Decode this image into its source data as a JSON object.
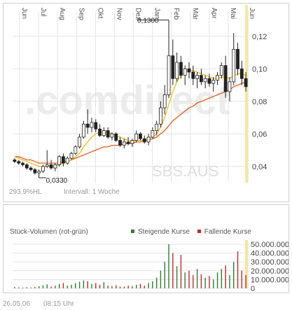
{
  "chart_data": [
    {
      "type": "candlestick",
      "months": [
        "Jun",
        "Jul",
        "Aug",
        "Sep",
        "Okt",
        "Nov",
        "Dez",
        "Jan",
        "Feb",
        "Mär",
        "Apr",
        "Mai",
        "Jun"
      ],
      "y_ticks": [
        "0,12",
        "0,10",
        "0,08",
        "0,06",
        "0,04"
      ],
      "ylim": [
        0.03,
        0.135
      ],
      "annotations": {
        "high": "0,1300",
        "low": "0,0330"
      },
      "watermark": ".comdirect",
      "symbol": "SBS.AUS",
      "series": {
        "ohlc": [
          [
            0.044,
            0.045,
            0.042,
            0.043
          ],
          [
            0.043,
            0.044,
            0.041,
            0.042
          ],
          [
            0.042,
            0.043,
            0.04,
            0.041
          ],
          [
            0.041,
            0.042,
            0.038,
            0.039
          ],
          [
            0.039,
            0.04,
            0.037,
            0.038
          ],
          [
            0.038,
            0.039,
            0.035,
            0.036
          ],
          [
            0.036,
            0.038,
            0.033,
            0.037
          ],
          [
            0.037,
            0.041,
            0.036,
            0.04
          ],
          [
            0.04,
            0.05,
            0.039,
            0.041
          ],
          [
            0.041,
            0.044,
            0.038,
            0.039
          ],
          [
            0.039,
            0.042,
            0.037,
            0.041
          ],
          [
            0.041,
            0.047,
            0.04,
            0.046
          ],
          [
            0.046,
            0.048,
            0.04,
            0.042
          ],
          [
            0.042,
            0.046,
            0.041,
            0.045
          ],
          [
            0.045,
            0.049,
            0.044,
            0.048
          ],
          [
            0.048,
            0.053,
            0.047,
            0.052
          ],
          [
            0.052,
            0.06,
            0.051,
            0.058
          ],
          [
            0.058,
            0.068,
            0.057,
            0.066
          ],
          [
            0.066,
            0.075,
            0.06,
            0.064
          ],
          [
            0.064,
            0.07,
            0.061,
            0.067
          ],
          [
            0.067,
            0.069,
            0.061,
            0.063
          ],
          [
            0.063,
            0.066,
            0.058,
            0.059
          ],
          [
            0.059,
            0.064,
            0.058,
            0.062
          ],
          [
            0.062,
            0.064,
            0.057,
            0.058
          ],
          [
            0.058,
            0.061,
            0.056,
            0.06
          ],
          [
            0.06,
            0.061,
            0.055,
            0.056
          ],
          [
            0.056,
            0.058,
            0.052,
            0.053
          ],
          [
            0.053,
            0.057,
            0.051,
            0.055
          ],
          [
            0.055,
            0.058,
            0.053,
            0.054
          ],
          [
            0.054,
            0.057,
            0.052,
            0.056
          ],
          [
            0.056,
            0.062,
            0.055,
            0.06
          ],
          [
            0.06,
            0.061,
            0.056,
            0.057
          ],
          [
            0.057,
            0.059,
            0.054,
            0.055
          ],
          [
            0.055,
            0.06,
            0.053,
            0.058
          ],
          [
            0.058,
            0.064,
            0.057,
            0.062
          ],
          [
            0.062,
            0.068,
            0.059,
            0.066
          ],
          [
            0.066,
            0.08,
            0.064,
            0.076
          ],
          [
            0.076,
            0.09,
            0.072,
            0.084
          ],
          [
            0.084,
            0.13,
            0.082,
            0.108
          ],
          [
            0.108,
            0.118,
            0.09,
            0.094
          ],
          [
            0.094,
            0.11,
            0.092,
            0.104
          ],
          [
            0.104,
            0.108,
            0.094,
            0.096
          ],
          [
            0.096,
            0.102,
            0.09,
            0.1
          ],
          [
            0.1,
            0.104,
            0.094,
            0.098
          ],
          [
            0.098,
            0.102,
            0.09,
            0.094
          ],
          [
            0.094,
            0.098,
            0.088,
            0.096
          ],
          [
            0.096,
            0.1,
            0.09,
            0.092
          ],
          [
            0.092,
            0.096,
            0.088,
            0.094
          ],
          [
            0.094,
            0.097,
            0.089,
            0.091
          ],
          [
            0.091,
            0.095,
            0.086,
            0.093
          ],
          [
            0.093,
            0.098,
            0.09,
            0.096
          ],
          [
            0.096,
            0.104,
            0.094,
            0.102
          ],
          [
            0.102,
            0.108,
            0.082,
            0.086
          ],
          [
            0.086,
            0.095,
            0.08,
            0.092
          ],
          [
            0.092,
            0.122,
            0.09,
            0.112
          ],
          [
            0.112,
            0.116,
            0.096,
            0.1
          ],
          [
            0.1,
            0.105,
            0.09,
            0.094
          ],
          [
            0.094,
            0.098,
            0.086,
            0.089
          ]
        ],
        "ma_short": [
          0.046,
          0.045,
          0.044,
          0.043,
          0.042,
          0.041,
          0.04,
          0.04,
          0.04,
          0.04,
          0.04,
          0.041,
          0.042,
          0.043,
          0.044,
          0.046,
          0.048,
          0.052,
          0.055,
          0.058,
          0.06,
          0.061,
          0.061,
          0.061,
          0.06,
          0.059,
          0.058,
          0.057,
          0.056,
          0.055,
          0.056,
          0.056,
          0.056,
          0.057,
          0.058,
          0.06,
          0.064,
          0.07,
          0.078,
          0.086,
          0.092,
          0.096,
          0.098,
          0.099,
          0.099,
          0.098,
          0.097,
          0.096,
          0.095,
          0.094,
          0.094,
          0.095,
          0.095,
          0.094,
          0.096,
          0.097,
          0.097,
          0.096
        ],
        "ma_long": [
          0.046,
          0.046,
          0.045,
          0.044,
          0.044,
          0.043,
          0.042,
          0.042,
          0.042,
          0.042,
          0.042,
          0.042,
          0.043,
          0.043,
          0.044,
          0.045,
          0.046,
          0.047,
          0.048,
          0.049,
          0.05,
          0.051,
          0.052,
          0.052,
          0.053,
          0.053,
          0.053,
          0.054,
          0.054,
          0.054,
          0.055,
          0.055,
          0.056,
          0.056,
          0.057,
          0.058,
          0.06,
          0.062,
          0.065,
          0.068,
          0.07,
          0.072,
          0.074,
          0.076,
          0.077,
          0.079,
          0.08,
          0.081,
          0.082,
          0.083,
          0.084,
          0.085,
          0.086,
          0.087,
          0.089,
          0.09,
          0.091,
          0.092
        ]
      }
    },
    {
      "type": "bar",
      "title": "Stück-Volumen (rot-grün)",
      "legend": [
        "Steigende Kurse",
        "Fallende Kurse"
      ],
      "y_ticks": [
        "50.000.000",
        "40.000.000",
        "30.000.000",
        "20.000.000",
        "10.000.000",
        "0"
      ],
      "ylim": [
        0,
        50000000
      ],
      "values": [
        1.5,
        1.0,
        0.8,
        1.2,
        0.9,
        1.5,
        2.5,
        3.5,
        4.5,
        2.0,
        3.0,
        5.0,
        6.0,
        3.0,
        4.0,
        6.0,
        7.5,
        9.0,
        8.0,
        5.0,
        6.0,
        4.0,
        7.0,
        3.0,
        2.5,
        3.5,
        2.0,
        2.0,
        3.0,
        2.5,
        4.0,
        5.0,
        3.0,
        6.0,
        8.0,
        12.0,
        20.0,
        30.0,
        50.0,
        40.0,
        25.0,
        38.0,
        18.0,
        20.0,
        15.0,
        22.0,
        16.0,
        12.0,
        14.0,
        10.0,
        18.0,
        22.0,
        26.0,
        15.0,
        30.0,
        42.0,
        20.0,
        15.0
      ],
      "values_unit_note": "millions",
      "rising": [
        true,
        false,
        false,
        true,
        false,
        false,
        true,
        true,
        true,
        false,
        true,
        true,
        false,
        true,
        true,
        true,
        true,
        true,
        false,
        true,
        false,
        false,
        true,
        false,
        true,
        false,
        false,
        true,
        false,
        true,
        true,
        false,
        false,
        true,
        true,
        true,
        true,
        true,
        true,
        false,
        true,
        false,
        true,
        false,
        false,
        true,
        false,
        true,
        false,
        true,
        true,
        true,
        false,
        true,
        true,
        false,
        false,
        false
      ]
    }
  ],
  "info": {
    "hl": "293,9%HL",
    "interval": "Intervall: 1 Woche"
  },
  "footer": {
    "date": "26.05.06",
    "time": "08:15 Uhr"
  },
  "colors": {
    "up": "#2e7d32",
    "down": "#c62828",
    "ma_short": "#f5b400",
    "ma_long": "#e55b1a",
    "grid": "#e3e3e3",
    "highlight": "#f7e7a0",
    "watermark": "#ececec"
  }
}
